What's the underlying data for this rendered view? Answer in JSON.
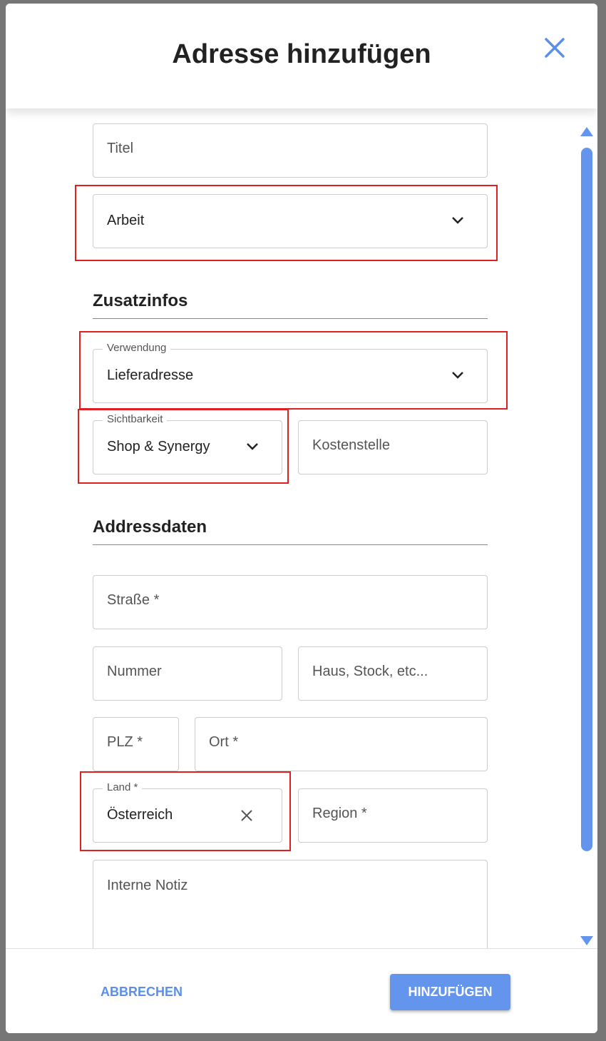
{
  "dialog": {
    "title": "Adresse hinzufügen"
  },
  "fields": {
    "titel": {
      "placeholder": "Titel"
    },
    "typ": {
      "value": "Arbeit"
    },
    "verwendung": {
      "label": "Verwendung",
      "value": "Lieferadresse"
    },
    "sichtbarkeit": {
      "label": "Sichtbarkeit",
      "value": "Shop & Synergy"
    },
    "kostenstelle": {
      "placeholder": "Kostenstelle"
    },
    "strasse": {
      "placeholder": "Straße *"
    },
    "nummer": {
      "placeholder": "Nummer"
    },
    "zusatz": {
      "placeholder": "Haus, Stock, etc..."
    },
    "plz": {
      "placeholder": "PLZ *"
    },
    "ort": {
      "placeholder": "Ort *"
    },
    "land": {
      "label": "Land *",
      "value": "Österreich"
    },
    "region": {
      "placeholder": "Region *"
    },
    "notiz": {
      "placeholder": "Interne Notiz"
    }
  },
  "sections": {
    "zusatzinfos": "Zusatzinfos",
    "addressdaten": "Addressdaten"
  },
  "footer": {
    "cancel_label": "ABBRECHEN",
    "submit_label": "HINZUFÜGEN"
  },
  "colors": {
    "accent": "#6495ed",
    "highlight": "#e02020"
  }
}
